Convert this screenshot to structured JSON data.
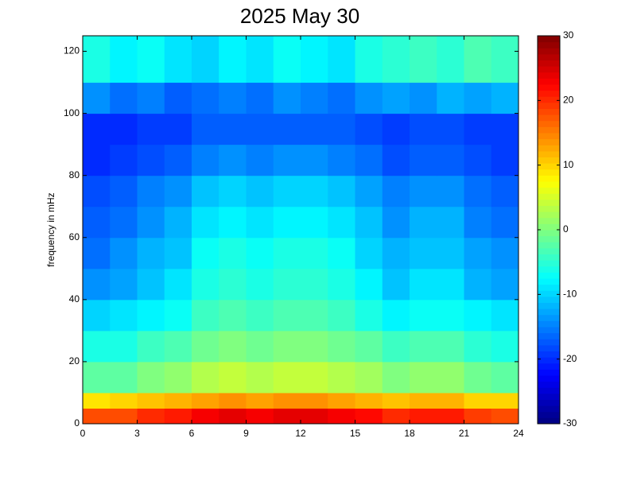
{
  "chart_data": {
    "type": "heatmap",
    "title": "2025 May 30",
    "ylabel": "frequency in mHz",
    "colormap": "jet",
    "x_edges": [
      0,
      1.5,
      3,
      4.5,
      6,
      7.5,
      9,
      10.5,
      12,
      13.5,
      15,
      16.5,
      18,
      19.5,
      21,
      22.5,
      24
    ],
    "y_edges": [
      0,
      5,
      10,
      20,
      30,
      40,
      50,
      60,
      70,
      80,
      90,
      100,
      110,
      125
    ],
    "z": [
      [
        18,
        18,
        20,
        21,
        23,
        24,
        23,
        24,
        24,
        23,
        22,
        20,
        21,
        21,
        19,
        18
      ],
      [
        9,
        10,
        11,
        12,
        13,
        14,
        13,
        14,
        14,
        13,
        12,
        11,
        12,
        12,
        10,
        10
      ],
      [
        -2,
        -2,
        0,
        1,
        3,
        4,
        3,
        4,
        4,
        3,
        2,
        0,
        1,
        1,
        -1,
        -2
      ],
      [
        -6,
        -6,
        -4,
        -3,
        -1,
        0,
        -1,
        0,
        0,
        -1,
        -2,
        -4,
        -3,
        -3,
        -5,
        -6
      ],
      [
        -10,
        -9,
        -8,
        -7,
        -4,
        -3,
        -4,
        -3,
        -3,
        -4,
        -6,
        -8,
        -7,
        -7,
        -8,
        -9
      ],
      [
        -14,
        -13,
        -11,
        -9,
        -6,
        -5,
        -6,
        -5,
        -5,
        -6,
        -8,
        -11,
        -9,
        -9,
        -12,
        -13
      ],
      [
        -16,
        -14,
        -12,
        -11,
        -7,
        -6,
        -7,
        -6,
        -6,
        -7,
        -10,
        -12,
        -11,
        -11,
        -13,
        -14
      ],
      [
        -17,
        -16,
        -14,
        -12,
        -9,
        -8,
        -9,
        -8,
        -8,
        -9,
        -11,
        -14,
        -12,
        -12,
        -15,
        -16
      ],
      [
        -18,
        -17,
        -15,
        -14,
        -11,
        -10,
        -11,
        -10,
        -10,
        -11,
        -13,
        -15,
        -14,
        -14,
        -16,
        -17
      ],
      [
        -20,
        -19,
        -18,
        -17,
        -15,
        -14,
        -15,
        -14,
        -14,
        -15,
        -16,
        -18,
        -17,
        -17,
        -18,
        -19
      ],
      [
        -20,
        -20,
        -19,
        -19,
        -17,
        -17,
        -17,
        -17,
        -17,
        -17,
        -18,
        -19,
        -18,
        -18,
        -19,
        -19
      ],
      [
        -14,
        -16,
        -15,
        -17,
        -16,
        -15,
        -16,
        -14,
        -15,
        -16,
        -14,
        -13,
        -14,
        -12,
        -13,
        -12
      ],
      [
        -6,
        -8,
        -7,
        -9,
        -10,
        -8,
        -9,
        -7,
        -8,
        -9,
        -6,
        -5,
        -4,
        -5,
        -3,
        -4
      ]
    ],
    "xlim": [
      0,
      24
    ],
    "ylim": [
      0,
      125
    ],
    "xticks": [
      0,
      3,
      6,
      9,
      12,
      15,
      18,
      21,
      24
    ],
    "yticks": [
      0,
      20,
      40,
      60,
      80,
      100,
      120
    ],
    "clim": [
      -30,
      30
    ],
    "cticks": [
      -30,
      -20,
      -10,
      0,
      10,
      20,
      30
    ]
  }
}
